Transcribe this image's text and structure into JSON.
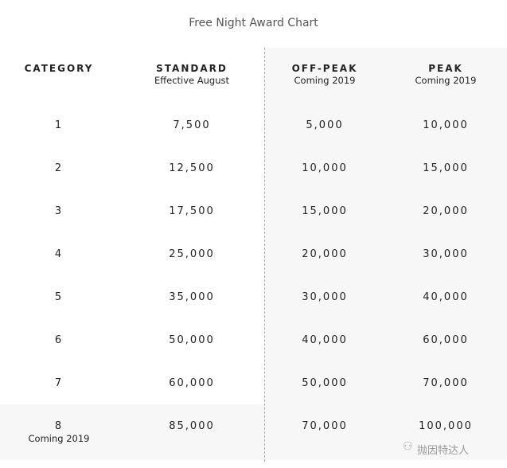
{
  "title": "Free Night Award Chart",
  "headers": [
    {
      "label": "CATEGORY",
      "sub": ""
    },
    {
      "label": "STANDARD",
      "sub": "Effective August"
    },
    {
      "label": "OFF-PEAK",
      "sub": "Coming 2019"
    },
    {
      "label": "PEAK",
      "sub": "Coming 2019"
    }
  ],
  "rows": [
    {
      "category": "1",
      "note": "",
      "standard": "7,500",
      "off_peak": "5,000",
      "peak": "10,000"
    },
    {
      "category": "2",
      "note": "",
      "standard": "12,500",
      "off_peak": "10,000",
      "peak": "15,000"
    },
    {
      "category": "3",
      "note": "",
      "standard": "17,500",
      "off_peak": "15,000",
      "peak": "20,000"
    },
    {
      "category": "4",
      "note": "",
      "standard": "25,000",
      "off_peak": "20,000",
      "peak": "30,000"
    },
    {
      "category": "5",
      "note": "",
      "standard": "35,000",
      "off_peak": "30,000",
      "peak": "40,000"
    },
    {
      "category": "6",
      "note": "",
      "standard": "50,000",
      "off_peak": "40,000",
      "peak": "60,000"
    },
    {
      "category": "7",
      "note": "",
      "standard": "60,000",
      "off_peak": "50,000",
      "peak": "70,000"
    },
    {
      "category": "8",
      "note": "Coming 2019",
      "standard": "85,000",
      "off_peak": "70,000",
      "peak": "100,000"
    }
  ],
  "watermark": "抛因特达人",
  "colors": {
    "shade": "#f7f7f8",
    "divider": "#aaaaaa"
  }
}
